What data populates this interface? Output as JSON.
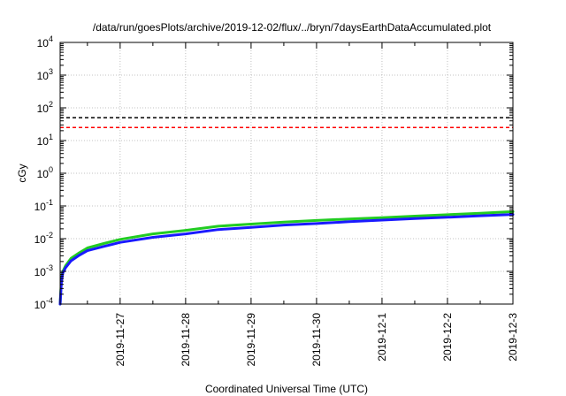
{
  "chart_data": {
    "type": "line",
    "title": "/data/run/goesPlots/archive/2019-12-02/flux/../bryn/7daysEarthDataAccumulated.plot",
    "xlabel": "Coordinated Universal Time (UTC)",
    "ylabel": "cGy",
    "y_scale": "log",
    "ylim": [
      0.0001,
      10000
    ],
    "y_ticks": [
      {
        "value": 0.0001,
        "base": "10",
        "exp": "-4"
      },
      {
        "value": 0.001,
        "base": "10",
        "exp": "-3"
      },
      {
        "value": 0.01,
        "base": "10",
        "exp": "-2"
      },
      {
        "value": 0.1,
        "base": "10",
        "exp": "-1"
      },
      {
        "value": 1,
        "base": "10",
        "exp": "0"
      },
      {
        "value": 10,
        "base": "10",
        "exp": "1"
      },
      {
        "value": 100,
        "base": "10",
        "exp": "2"
      },
      {
        "value": 1000,
        "base": "10",
        "exp": "3"
      },
      {
        "value": 10000,
        "base": "10",
        "exp": "4"
      }
    ],
    "xlim": [
      "2019-11-26T02:00",
      "2019-12-03T00:00"
    ],
    "x_ticks": [
      "2019-11-27",
      "2019-11-28",
      "2019-11-29",
      "2019-11-30",
      "2019-12-1",
      "2019-12-2",
      "2019-12-3"
    ],
    "x_tick_dates": [
      "2019-11-27T00:00",
      "2019-11-28T00:00",
      "2019-11-29T00:00",
      "2019-11-30T00:00",
      "2019-12-01T00:00",
      "2019-12-02T00:00",
      "2019-12-03T00:00"
    ],
    "grid": true,
    "thresholds": [
      {
        "value": 50,
        "color": "#000000",
        "style": "dashed"
      },
      {
        "value": 25,
        "color": "#ff0000",
        "style": "dashed"
      }
    ],
    "series": [
      {
        "color": "#22cc22",
        "x": [
          "2019-11-26T02:00",
          "2019-11-26T02:30",
          "2019-11-26T03:00",
          "2019-11-26T04:00",
          "2019-11-26T06:00",
          "2019-11-26T09:00",
          "2019-11-26T12:00",
          "2019-11-26T18:00",
          "2019-11-27T00:00",
          "2019-11-27T12:00",
          "2019-11-28T00:00",
          "2019-11-28T12:00",
          "2019-11-29T00:00",
          "2019-11-29T12:00",
          "2019-11-30T00:00",
          "2019-11-30T12:00",
          "2019-12-01T00:00",
          "2019-12-01T12:00",
          "2019-12-02T00:00",
          "2019-12-02T12:00",
          "2019-12-03T00:00"
        ],
        "y": [
          0.0001,
          0.0006,
          0.001,
          0.0015,
          0.0025,
          0.0037,
          0.0052,
          0.0071,
          0.0095,
          0.014,
          0.018,
          0.024,
          0.028,
          0.032,
          0.036,
          0.04,
          0.044,
          0.049,
          0.054,
          0.06,
          0.067
        ]
      },
      {
        "color": "#1a1aff",
        "x": [
          "2019-11-26T02:00",
          "2019-11-26T02:30",
          "2019-11-26T03:00",
          "2019-11-26T04:00",
          "2019-11-26T06:00",
          "2019-11-26T09:00",
          "2019-11-26T12:00",
          "2019-11-26T18:00",
          "2019-11-27T00:00",
          "2019-11-27T12:00",
          "2019-11-28T00:00",
          "2019-11-28T12:00",
          "2019-11-29T00:00",
          "2019-11-29T12:00",
          "2019-11-30T00:00",
          "2019-11-30T12:00",
          "2019-12-01T00:00",
          "2019-12-01T12:00",
          "2019-12-02T00:00",
          "2019-12-02T12:00",
          "2019-12-03T00:00"
        ],
        "y": [
          0.0001,
          0.0005,
          0.0009,
          0.0013,
          0.0021,
          0.0031,
          0.0043,
          0.0058,
          0.0077,
          0.011,
          0.014,
          0.019,
          0.022,
          0.026,
          0.029,
          0.033,
          0.037,
          0.041,
          0.045,
          0.05,
          0.055
        ]
      }
    ]
  }
}
